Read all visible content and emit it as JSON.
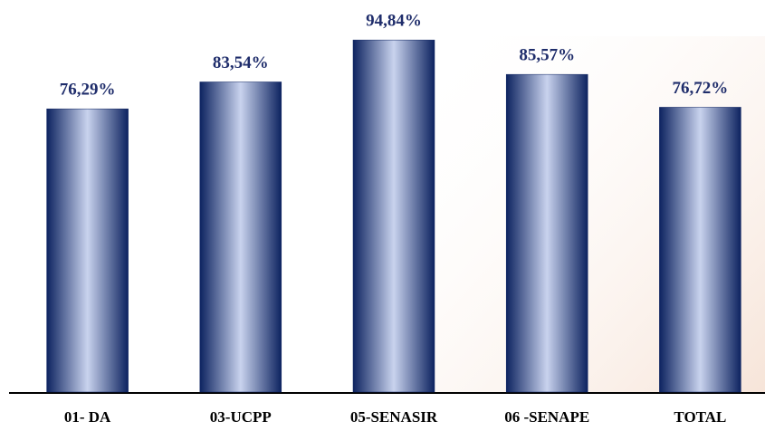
{
  "chart_data": {
    "type": "bar",
    "categories": [
      "01- DA",
      "03-UCPP",
      "05-SENASIR",
      "06 -SENAPE",
      "TOTAL"
    ],
    "values": [
      76.29,
      83.54,
      94.84,
      85.57,
      76.72
    ],
    "value_labels": [
      "76,29%",
      "83,54%",
      "94,84%",
      "85,57%",
      "76,72%"
    ],
    "color": "#0d2360"
  }
}
